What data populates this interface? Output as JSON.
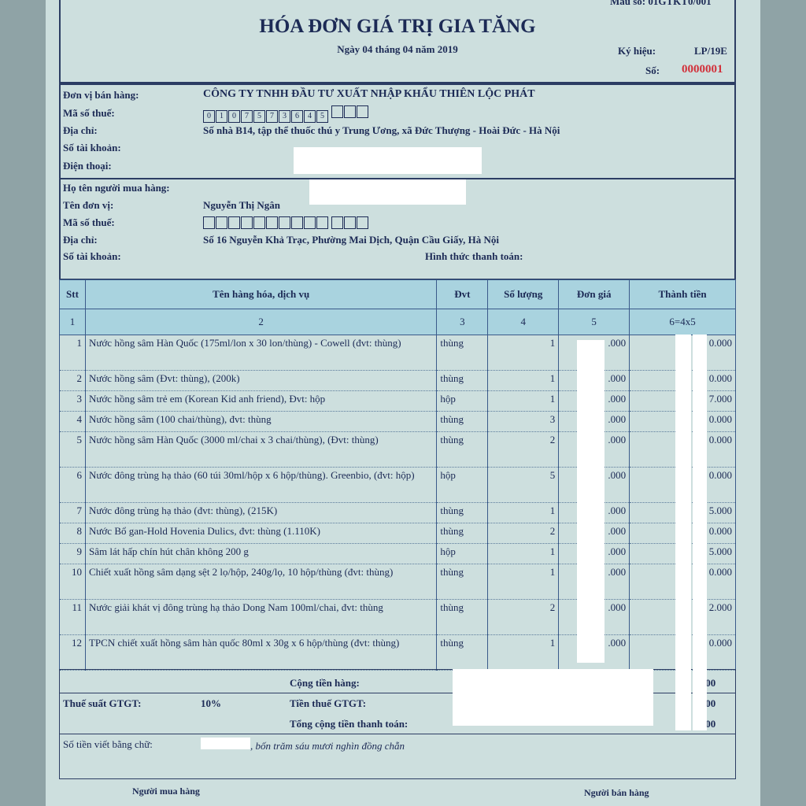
{
  "header": {
    "form_code": "Mẫu số: 01GTKT0/001",
    "title": "HÓA ĐƠN GIÁ TRỊ GIA TĂNG",
    "date": "Ngày 04 tháng 04 năm 2019",
    "symbol_label": "Ký hiệu:",
    "symbol": "LP/19E",
    "number_label": "Số:",
    "number": "0000001"
  },
  "seller": {
    "name_label": "Đơn vị bán hàng:",
    "name": "CÔNG TY TNHH ĐẦU TƯ XUẤT NHẬP KHẨU THIÊN LỘC PHÁT",
    "tax_label": "Mã số thuế:",
    "tax_digits": [
      "0",
      "1",
      "0",
      "7",
      "5",
      "7",
      "3",
      "6",
      "4",
      "5",
      "",
      "",
      ""
    ],
    "address_label": "Địa chỉ:",
    "address": "Số nhà B14, tập thể thuốc thú y Trung Ương, xã Đức Thượng - Hoài Đức - Hà Nội",
    "account_label": "Số tài khoản:",
    "phone_label": "Điện thoại:"
  },
  "buyer": {
    "buyer_label": "Họ tên người mua hàng:",
    "unit_label": "Tên đơn vị:",
    "unit": "Nguyễn Thị Ngân",
    "tax_label": "Mã số thuế:",
    "tax_digits": [
      "",
      "",
      "",
      "",
      "",
      "",
      "",
      "",
      "",
      "",
      "",
      "",
      ""
    ],
    "address_label": "Địa chỉ:",
    "address": "Số 16 Nguyễn Khả Trạc, Phường Mai Dịch, Quận Cầu Giấy, Hà Nội",
    "account_label": "Số tài khoản:",
    "payment_label": "Hình thức thanh toán:"
  },
  "table": {
    "headers": [
      "Stt",
      "Tên hàng hóa, dịch vụ",
      "Đvt",
      "Số lượng",
      "Đơn giá",
      "Thành tiền"
    ],
    "index_row": [
      "1",
      "2",
      "3",
      "4",
      "5",
      "6=4x5"
    ],
    "rows": [
      [
        "1",
        "Nước hồng sâm Hàn Quốc (175ml/lon x 30 lon/thùng) - Cowell (đvt: thùng)",
        "thùng",
        "1",
        ".000",
        "0.000"
      ],
      [
        "2",
        "Nước hồng sâm (Đvt: thùng), (200k)",
        "thùng",
        "1",
        ".000",
        "0.000"
      ],
      [
        "3",
        "Nước hồng sâm trẻ em (Korean Kid anh friend), Đvt: hộp",
        "hộp",
        "1",
        ".000",
        "7.000"
      ],
      [
        "4",
        "Nước hồng sâm (100 chai/thùng), đvt: thùng",
        "thùng",
        "3",
        ".000",
        "0.000"
      ],
      [
        "5",
        "Nước hồng sâm Hàn Quốc (3000 ml/chai x 3 chai/thùng), (Đvt: thùng)",
        "thùng",
        "2",
        ".000",
        "0.000"
      ],
      [
        "6",
        "Nước đông trùng hạ thảo (60 túi 30ml/hộp x 6 hộp/thùng). Greenbio, (đvt: hộp)",
        "hộp",
        "5",
        ".000",
        "0.000"
      ],
      [
        "7",
        "Nước đông trùng hạ thảo (đvt: thùng), (215K)",
        "thùng",
        "1",
        ".000",
        "5.000"
      ],
      [
        "8",
        "Nước Bổ gan-Hold Hovenia Dulics, đvt: thùng (1.110K)",
        "thùng",
        "2",
        ".000",
        "0.000"
      ],
      [
        "9",
        "Sâm lát hấp chín hút chân không 200 g",
        "hộp",
        "1",
        ".000",
        "5.000"
      ],
      [
        "10",
        "Chiết xuất hồng sâm dạng sệt 2 lọ/hộp, 240g/lọ, 10 hộp/thùng (đvt: thùng)",
        "thùng",
        "1",
        ".000",
        "0.000"
      ],
      [
        "11",
        "Nước giải khát vị đông trùng hạ thảo Dong Nam 100ml/chai, đvt: thùng",
        "thùng",
        "2",
        ".000",
        "2.000"
      ],
      [
        "12",
        "TPCN chiết xuất hồng sâm hàn quốc 80ml x 30g x 6 hộp/thùng (đvt: thùng)",
        "thùng",
        "1",
        ".000",
        "0.000"
      ]
    ]
  },
  "summary": {
    "subtotal_label": "Cộng tiền hàng:",
    "subtotal": "0.000",
    "vat_rate_label": "Thuế suất GTGT:",
    "vat_rate": "10%",
    "vat_label": "Tiền thuế GTGT:",
    "vat": "0.000",
    "total_label": "Tổng cộng tiền thanh toán:",
    "total": "0.000",
    "words_label": "Số tiền viết bằng chữ:",
    "words": ", bốn trăm sáu mươi nghìn đồng chẵn"
  },
  "signatures": {
    "buyer": "Người mua hàng",
    "seller": "Người bán hàng"
  }
}
